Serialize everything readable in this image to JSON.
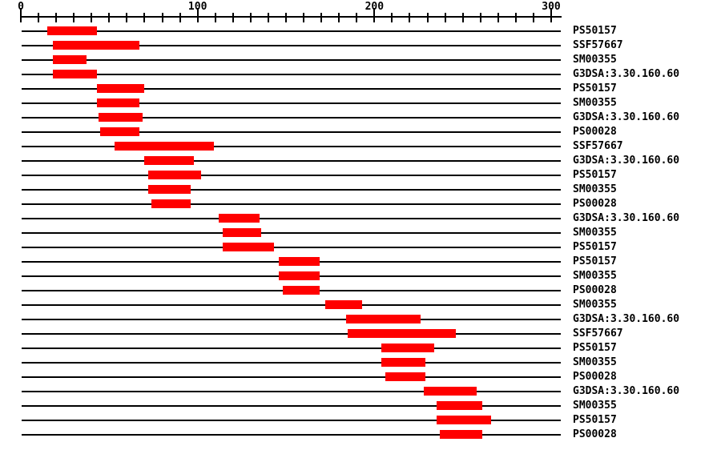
{
  "colors": {
    "bar": "#ff0000",
    "axis": "#000000",
    "label_text": "#000000",
    "background": "#ffffff"
  },
  "chart_data": {
    "type": "bar",
    "subtype": "horizontal-domain-ranges",
    "title": "",
    "xlabel": "",
    "ylabel": "",
    "legend": null,
    "grid": false,
    "x_axis": {
      "min": 0,
      "max": 300,
      "minor_tick_step": 10,
      "major_ticks": [
        0,
        100,
        200,
        300
      ],
      "tick_labels": [
        "0",
        "100",
        "200",
        "300"
      ]
    },
    "rows": [
      {
        "label": "PS50157",
        "start": 15,
        "end": 43
      },
      {
        "label": "SSF57667",
        "start": 18,
        "end": 67
      },
      {
        "label": "SM00355",
        "start": 18,
        "end": 37
      },
      {
        "label": "G3DSA:3.30.160.60",
        "start": 18,
        "end": 43
      },
      {
        "label": "PS50157",
        "start": 43,
        "end": 70
      },
      {
        "label": "SM00355",
        "start": 43,
        "end": 67
      },
      {
        "label": "G3DSA:3.30.160.60",
        "start": 44,
        "end": 69
      },
      {
        "label": "PS00028",
        "start": 45,
        "end": 67
      },
      {
        "label": "SSF57667",
        "start": 53,
        "end": 109
      },
      {
        "label": "G3DSA:3.30.160.60",
        "start": 70,
        "end": 98
      },
      {
        "label": "PS50157",
        "start": 72,
        "end": 102
      },
      {
        "label": "SM00355",
        "start": 72,
        "end": 96
      },
      {
        "label": "PS00028",
        "start": 74,
        "end": 96
      },
      {
        "label": "G3DSA:3.30.160.60",
        "start": 112,
        "end": 135
      },
      {
        "label": "SM00355",
        "start": 114,
        "end": 136
      },
      {
        "label": "PS50157",
        "start": 114,
        "end": 143
      },
      {
        "label": "PS50157",
        "start": 146,
        "end": 169
      },
      {
        "label": "SM00355",
        "start": 146,
        "end": 169
      },
      {
        "label": "PS00028",
        "start": 148,
        "end": 169
      },
      {
        "label": "SM00355",
        "start": 172,
        "end": 193
      },
      {
        "label": "G3DSA:3.30.160.60",
        "start": 184,
        "end": 226
      },
      {
        "label": "SSF57667",
        "start": 185,
        "end": 246
      },
      {
        "label": "PS50157",
        "start": 204,
        "end": 234
      },
      {
        "label": "SM00355",
        "start": 204,
        "end": 229
      },
      {
        "label": "PS00028",
        "start": 206,
        "end": 229
      },
      {
        "label": "G3DSA:3.30.160.60",
        "start": 228,
        "end": 258
      },
      {
        "label": "SM00355",
        "start": 235,
        "end": 261
      },
      {
        "label": "PS50157",
        "start": 235,
        "end": 266
      },
      {
        "label": "PS00028",
        "start": 237,
        "end": 261
      }
    ]
  }
}
